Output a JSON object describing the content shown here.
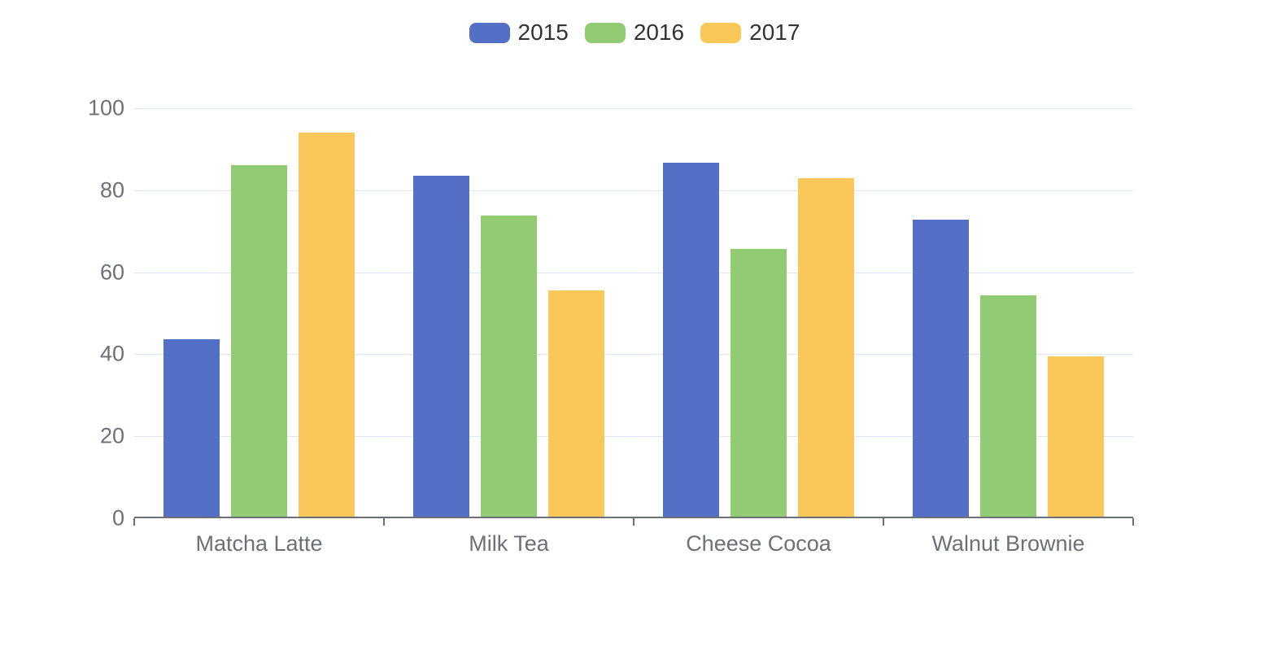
{
  "chart_data": {
    "type": "bar",
    "title": "",
    "xlabel": "",
    "ylabel": "",
    "categories": [
      "Matcha Latte",
      "Milk Tea",
      "Cheese Cocoa",
      "Walnut Brownie"
    ],
    "series": [
      {
        "name": "2015",
        "color": "#5470C6",
        "values": [
          43.3,
          83.1,
          86.4,
          72.4
        ]
      },
      {
        "name": "2016",
        "color": "#91CC75",
        "values": [
          85.8,
          73.4,
          65.2,
          53.9
        ]
      },
      {
        "name": "2017",
        "color": "#FAC858",
        "values": [
          93.7,
          55.1,
          82.5,
          39.1
        ]
      }
    ],
    "ylim": [
      0,
      100
    ],
    "yticks": [
      0,
      20,
      40,
      60,
      80,
      100
    ],
    "legend_position": "top-center",
    "grid": true,
    "colors": {
      "axis_line": "#6E7079",
      "axis_label": "#6E7079",
      "gridline": "#E0E6F1",
      "legend_text": "#333333",
      "background": "#FFFFFF"
    }
  }
}
